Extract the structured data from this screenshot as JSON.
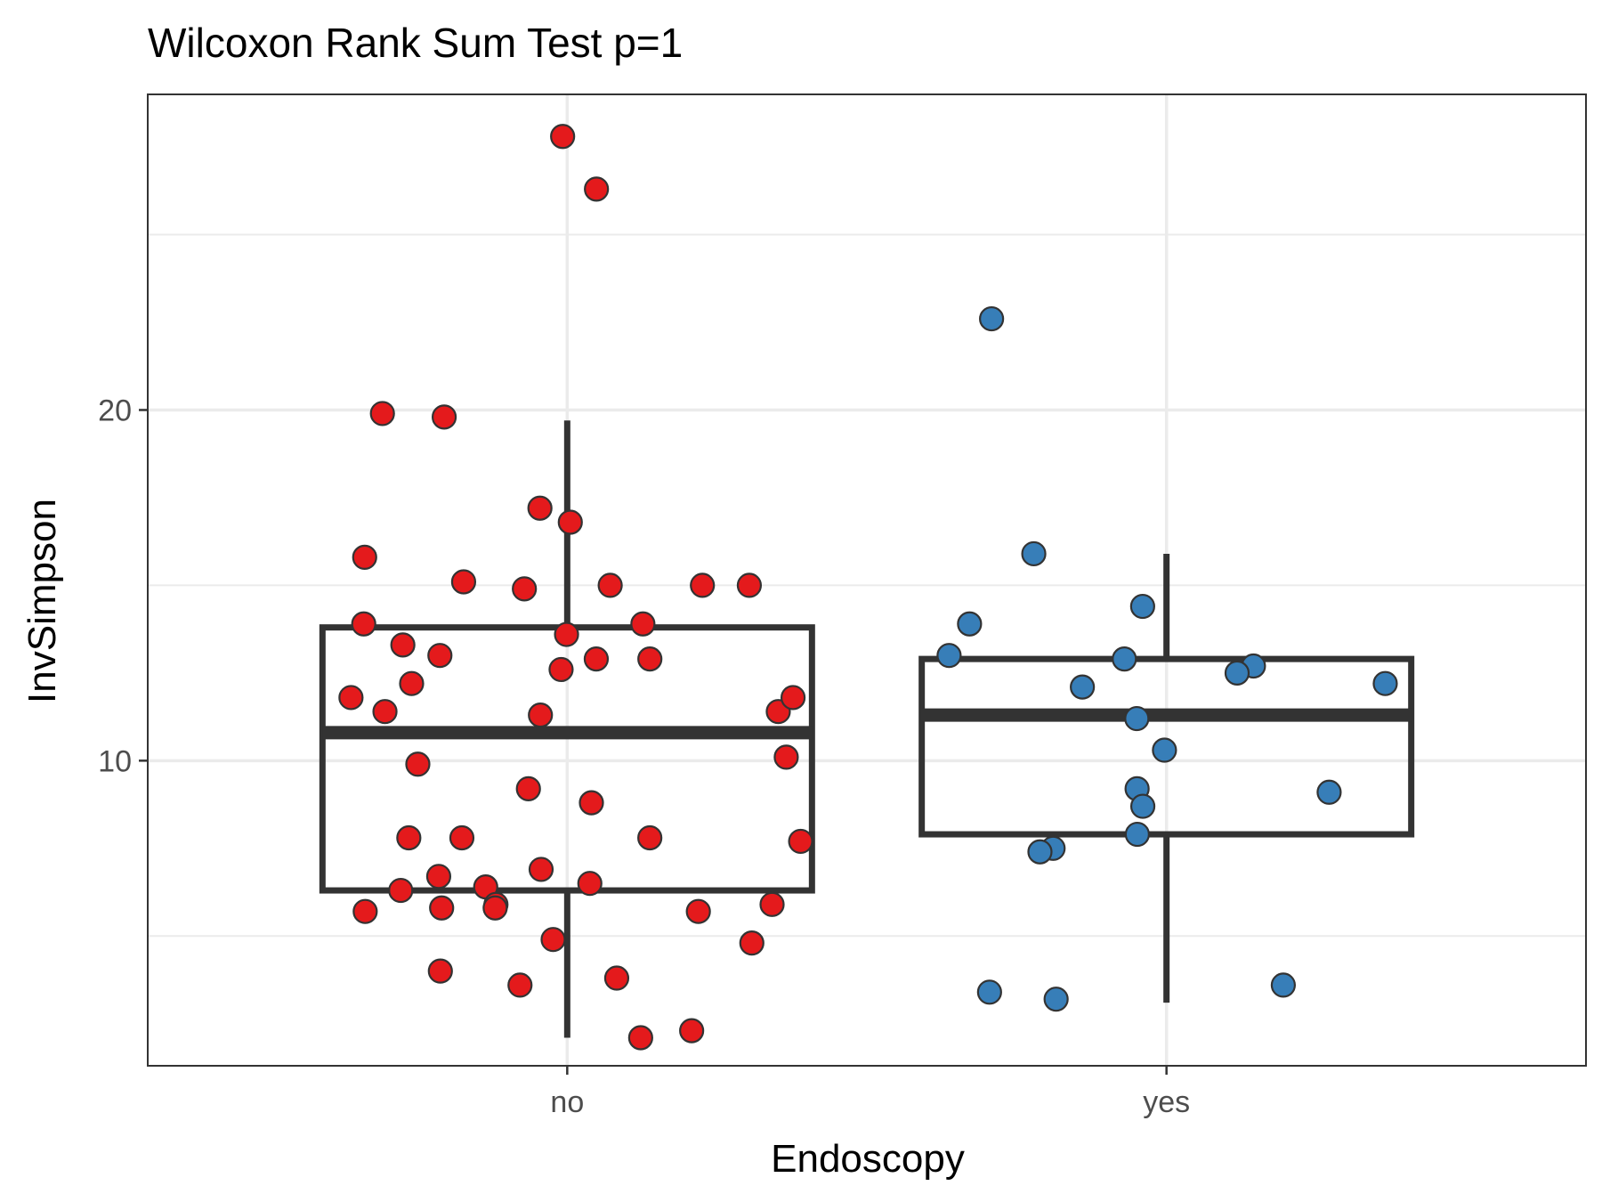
{
  "chart_data": {
    "type": "boxplot",
    "title": "Wilcoxon Rank Sum Test p=1",
    "xlabel": "Endoscopy",
    "ylabel": "InvSimpson",
    "categories": [
      "no",
      "yes"
    ],
    "y_ticks": [
      10,
      20
    ],
    "ylim": [
      1.3,
      29.0
    ],
    "grid": true,
    "colors": {
      "no": "#e41a1c",
      "yes": "#377eb8",
      "box": "#333333",
      "grid": "#ebebeb"
    },
    "boxes": [
      {
        "category": "no",
        "lower_whisker": 2.1,
        "q1": 6.3,
        "median": 10.8,
        "q3": 13.8,
        "upper_whisker": 19.7
      },
      {
        "category": "yes",
        "lower_whisker": 3.1,
        "q1": 7.9,
        "median": 11.3,
        "q3": 12.9,
        "upper_whisker": 15.9
      }
    ],
    "points": {
      "no": [
        27.8,
        26.3,
        19.9,
        19.8,
        17.2,
        16.8,
        15.8,
        15.0,
        15.0,
        14.9,
        15.1,
        15.0,
        13.9,
        13.9,
        13.6,
        13.0,
        12.9,
        13.3,
        12.9,
        12.6,
        12.2,
        11.8,
        11.4,
        11.8,
        11.4,
        11.3,
        10.1,
        9.9,
        9.2,
        8.8,
        7.8,
        7.8,
        7.8,
        7.7,
        6.9,
        6.7,
        6.5,
        6.4,
        6.3,
        5.7,
        5.9,
        5.8,
        5.7,
        5.9,
        5.8,
        4.8,
        4.9,
        4.0,
        3.8,
        3.6,
        2.3,
        2.1
      ],
      "yes": [
        22.6,
        15.9,
        14.4,
        13.9,
        13.0,
        12.9,
        12.7,
        12.5,
        12.2,
        12.1,
        11.2,
        10.3,
        9.2,
        9.1,
        8.7,
        7.9,
        7.5,
        7.4,
        3.6,
        3.4,
        3.2
      ]
    }
  }
}
